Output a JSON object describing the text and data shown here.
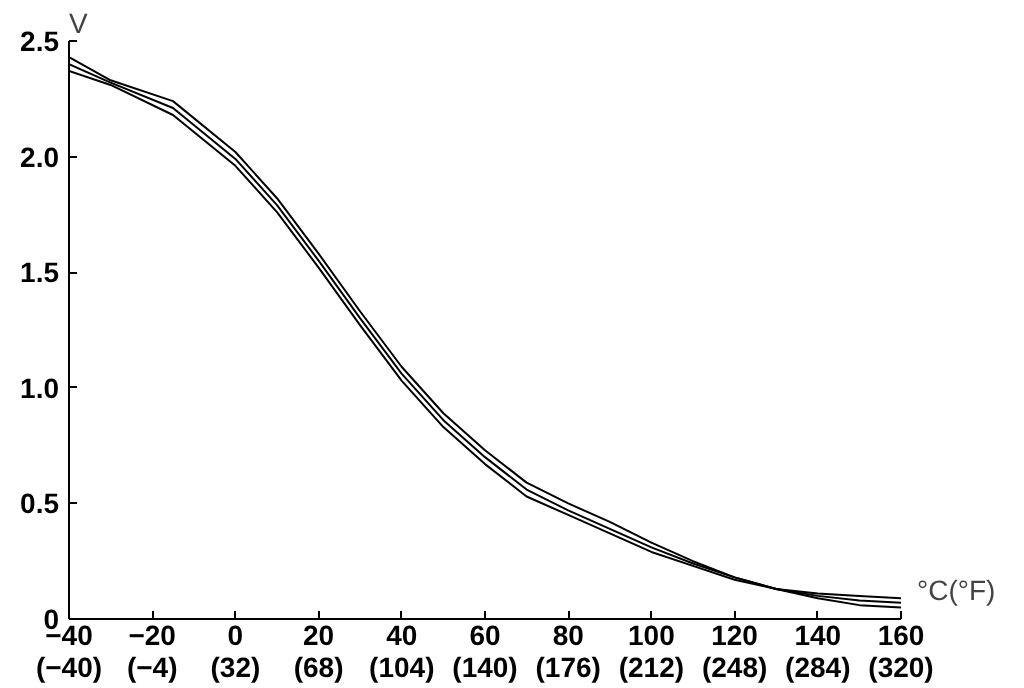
{
  "chart_data": {
    "type": "line",
    "xlabel": "°C(°F)",
    "ylabel": "V",
    "x": [
      -40,
      -30,
      -15,
      0,
      10,
      20,
      30,
      40,
      50,
      60,
      70,
      80,
      90,
      100,
      110,
      120,
      130,
      140,
      150,
      160
    ],
    "series": [
      {
        "color": "#000000",
        "values": [
          2.43,
          2.33,
          2.24,
          2.02,
          1.82,
          1.58,
          1.33,
          1.09,
          0.89,
          0.73,
          0.59,
          0.5,
          0.42,
          0.33,
          0.25,
          0.18,
          0.13,
          0.11,
          0.1,
          0.09
        ]
      },
      {
        "color": "#000000",
        "values": [
          2.4,
          2.32,
          2.21,
          1.99,
          1.79,
          1.55,
          1.3,
          1.06,
          0.86,
          0.7,
          0.56,
          0.47,
          0.39,
          0.31,
          0.24,
          0.18,
          0.13,
          0.1,
          0.08,
          0.07
        ]
      },
      {
        "color": "#000000",
        "values": [
          2.37,
          2.31,
          2.18,
          1.96,
          1.76,
          1.52,
          1.27,
          1.03,
          0.83,
          0.67,
          0.53,
          0.45,
          0.37,
          0.29,
          0.23,
          0.17,
          0.13,
          0.09,
          0.06,
          0.05
        ]
      }
    ],
    "xlim": [
      -40,
      160
    ],
    "ylim": [
      0,
      2.5
    ],
    "xticks": [
      {
        "value": -40,
        "label": "−40"
      },
      {
        "value": -20,
        "label": "−20"
      },
      0,
      20,
      40,
      60,
      80,
      100,
      120,
      140,
      160
    ],
    "x2lim": [
      -40,
      320
    ],
    "x2ticks": [
      {
        "value": -40,
        "label": "(−40)"
      },
      {
        "value": -4,
        "label": "(−4)"
      },
      {
        "value": 32,
        "label": "(32)"
      },
      {
        "value": 68,
        "label": "(68)"
      },
      {
        "value": 104,
        "label": "(104)"
      },
      {
        "value": 140,
        "label": "(140)"
      },
      {
        "value": 176,
        "label": "(176)"
      },
      {
        "value": 212,
        "label": "(212)"
      },
      {
        "value": 248,
        "label": "(248)"
      },
      {
        "value": 284,
        "label": "(284)"
      },
      {
        "value": 320,
        "label": "(320)"
      }
    ],
    "yticks": [
      0,
      0.5,
      {
        "value": 1,
        "label": "1.0"
      },
      1.5,
      {
        "value": 2,
        "label": "2.0"
      },
      2.5
    ],
    "grid": false
  }
}
